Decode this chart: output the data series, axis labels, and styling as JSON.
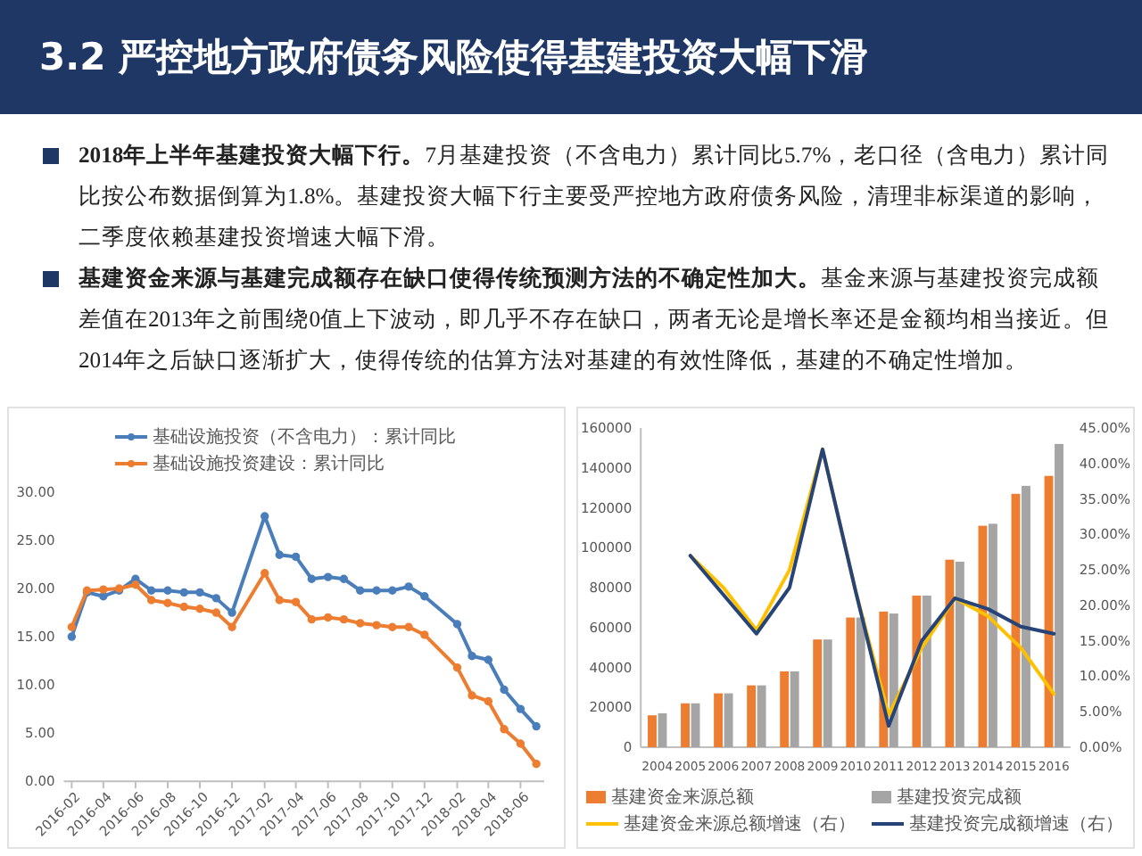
{
  "chart_data": [
    {
      "type": "other",
      "title": "3.2 严控地方政府债务风险使得基建投资大幅下滑",
      "annotations": [
        "2018年上半年基建投资大幅下行。",
        "7月基建投资（不含电力）累计同比5.7%，老口径（含电力）累计同比按公布数据倒算为1.8%。基建投资大幅下行主要受严控地方政府债务风险，清理非标渠道的影响，二季度依赖基建投资增速大幅下滑。",
        "基建资金来源与基建完成额存在缺口使得传统预测方法的不确定性加大。",
        "基金来源与基建投资完成额差值在2013年之前围绕0值上下波动，即几乎不存在缺口，两者无论是增长率还是金额均相当接近。但2014年之后缺口逐渐扩大，使得传统的估算方法对基建的有效性降低，基建的不确定性增加。"
      ]
    },
    {
      "type": "line",
      "x": [
        "2016-02",
        "2016-03",
        "2016-04",
        "2016-05",
        "2016-06",
        "2016-07",
        "2016-08",
        "2016-09",
        "2016-10",
        "2016-11",
        "2016-12",
        "2017-02",
        "2017-03",
        "2017-04",
        "2017-05",
        "2017-06",
        "2017-07",
        "2017-08",
        "2017-09",
        "2017-10",
        "2017-11",
        "2017-12",
        "2018-02",
        "2018-03",
        "2018-04",
        "2018-05",
        "2018-06",
        "2018-07"
      ],
      "xlim": [
        "2016-01-17",
        "2018-07-16"
      ],
      "xticks": [
        "2016-02",
        "2016-04",
        "2016-06",
        "2016-08",
        "2016-10",
        "2016-12",
        "2017-02",
        "2017-04",
        "2017-06",
        "2017-08",
        "2017-10",
        "2017-12",
        "2018-02",
        "2018-04",
        "2018-06"
      ],
      "ylim": [
        0,
        30
      ],
      "yticks": [
        {
          "value": 0,
          "label": "0.00"
        },
        {
          "value": 5,
          "label": "5.00"
        },
        {
          "value": 10,
          "label": "10.00"
        },
        {
          "value": 15,
          "label": "15.00"
        },
        {
          "value": 20,
          "label": "20.00"
        },
        {
          "value": 25,
          "label": "25.00"
        },
        {
          "value": 30,
          "label": "30.00"
        }
      ],
      "legend": "top",
      "marker": "circle",
      "series": [
        {
          "name": "基础设施投资（不含电力）：累计同比",
          "color": "#4a7ebb",
          "values": [
            15.0,
            19.6,
            19.2,
            19.8,
            21.0,
            19.8,
            19.8,
            19.6,
            19.6,
            19.0,
            17.5,
            27.5,
            23.5,
            23.3,
            21.0,
            21.2,
            21.0,
            19.8,
            19.8,
            19.8,
            20.2,
            19.2,
            16.3,
            13.0,
            12.6,
            9.5,
            7.5,
            5.7
          ]
        },
        {
          "name": "基础设施投资建设：累计同比",
          "color": "#ed7d31",
          "values": [
            16.0,
            19.8,
            19.9,
            20.0,
            20.4,
            18.8,
            18.5,
            18.1,
            17.9,
            17.5,
            16.0,
            21.6,
            18.8,
            18.6,
            16.8,
            17.0,
            16.8,
            16.4,
            16.2,
            16.0,
            16.0,
            15.2,
            11.8,
            8.9,
            8.3,
            5.4,
            3.9,
            1.8
          ]
        }
      ]
    },
    {
      "type": "bar",
      "categories": [
        "2004",
        "2005",
        "2006",
        "2007",
        "2008",
        "2009",
        "2010",
        "2011",
        "2012",
        "2013",
        "2014",
        "2015",
        "2016"
      ],
      "ylim": [
        0,
        160000
      ],
      "yticks": [
        0,
        20000,
        40000,
        60000,
        80000,
        100000,
        120000,
        140000,
        160000
      ],
      "y2lim": [
        0,
        45
      ],
      "y2ticks": [
        {
          "value": 0,
          "label": "0.00%"
        },
        {
          "value": 5,
          "label": "5.00%"
        },
        {
          "value": 10,
          "label": "10.00%"
        },
        {
          "value": 15,
          "label": "15.00%"
        },
        {
          "value": 20,
          "label": "20.00%"
        },
        {
          "value": 25,
          "label": "25.00%"
        },
        {
          "value": 30,
          "label": "30.00%"
        },
        {
          "value": 35,
          "label": "35.00%"
        },
        {
          "value": 40,
          "label": "40.00%"
        },
        {
          "value": 45,
          "label": "45.00%"
        }
      ],
      "legend": "bottom",
      "series": [
        {
          "name": "基建资金来源总额",
          "color": "#ed7d31",
          "values": [
            16000,
            22000,
            27000,
            31000,
            38000,
            54000,
            65000,
            68000,
            76000,
            94000,
            111000,
            127000,
            136000
          ]
        },
        {
          "name": "基建投资完成额",
          "color": "#a5a5a5",
          "values": [
            17000,
            22000,
            27000,
            31000,
            38000,
            54000,
            65000,
            67000,
            76000,
            93000,
            112000,
            131000,
            152000
          ]
        },
        {
          "name": "基建资金来源总额增速（右）",
          "type": "line",
          "axis": "y2",
          "color": "#ffc000",
          "values": [
            null,
            27.0,
            22.5,
            16.5,
            25.0,
            42.0,
            22.0,
            4.5,
            14.0,
            21.0,
            18.5,
            14.0,
            7.5
          ]
        },
        {
          "name": "基建投资完成额增速（右）",
          "type": "line",
          "axis": "y2",
          "color": "#264478",
          "values": [
            null,
            27.0,
            21.5,
            16.0,
            22.5,
            42.0,
            22.0,
            3.0,
            15.0,
            21.0,
            19.5,
            17.0,
            16.0
          ]
        }
      ]
    }
  ]
}
